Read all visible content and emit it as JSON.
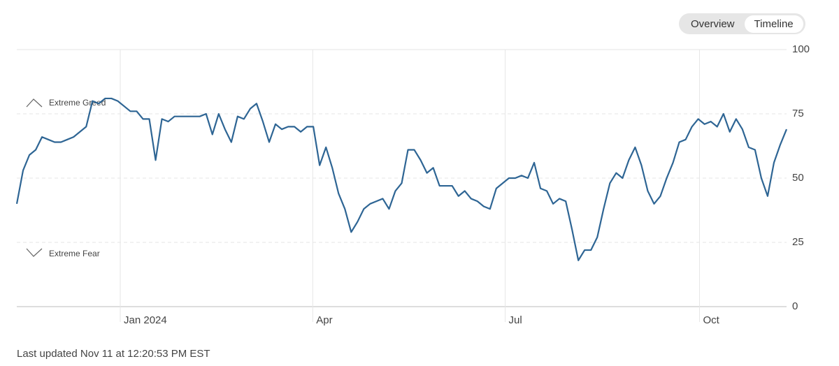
{
  "chart_data": {
    "type": "line",
    "series": [
      {
        "color": "#2e6594",
        "values": [
          40,
          53,
          59,
          61,
          66,
          65,
          64,
          64,
          65,
          66,
          68,
          70,
          80,
          79,
          81,
          81,
          80,
          78,
          76,
          76,
          73,
          73,
          57,
          73,
          72,
          74,
          74,
          74,
          74,
          74,
          75,
          67,
          75,
          69,
          64,
          74,
          73,
          77,
          79,
          72,
          64,
          71,
          69,
          70,
          70,
          68,
          70,
          70,
          55,
          62,
          54,
          44,
          38,
          29,
          33,
          38,
          40,
          41,
          42,
          38,
          45,
          48,
          61,
          61,
          57,
          52,
          54,
          47,
          47,
          47,
          43,
          45,
          42,
          41,
          39,
          38,
          46,
          48,
          50,
          50,
          51,
          50,
          56,
          46,
          45,
          40,
          42,
          41,
          30,
          18,
          22,
          22,
          27,
          38,
          48,
          52,
          50,
          57,
          62,
          55,
          45,
          40,
          43,
          50,
          56,
          64,
          65,
          70,
          73,
          71,
          72,
          70,
          75,
          68,
          73,
          69,
          62,
          61,
          50,
          43,
          56,
          63,
          69
        ]
      }
    ],
    "xlim": [
      0,
      122
    ],
    "xticks": [
      {
        "value": 16.4,
        "label": "Jan 2024"
      },
      {
        "value": 46.9,
        "label": "Apr"
      },
      {
        "value": 77.4,
        "label": "Jul"
      },
      {
        "value": 108.2,
        "label": "Oct"
      }
    ],
    "ylim": [
      0,
      100
    ],
    "yticks": [
      0,
      25,
      50,
      75,
      100
    ],
    "grid": true,
    "annotations": [
      "Extreme Greed",
      "Extreme Fear"
    ]
  },
  "toggle": [
    "Overview",
    "Timeline"
  ],
  "footer": "Last updated Nov 11 at 12:20:53 PM EST"
}
